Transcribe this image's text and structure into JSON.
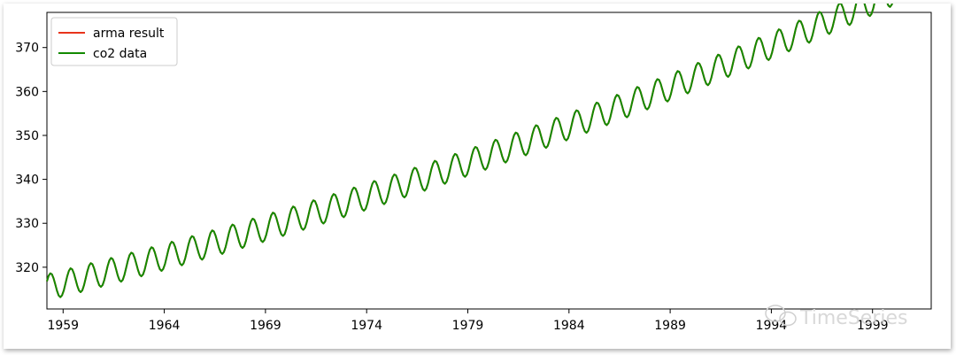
{
  "chart_data": {
    "type": "line",
    "title": "",
    "xlabel": "",
    "ylabel": "",
    "xlim": [
      1958.2,
      2001.9
    ],
    "ylim": [
      310.5,
      378.0
    ],
    "x_ticks": [
      1959,
      1964,
      1969,
      1974,
      1979,
      1984,
      1989,
      1994,
      1999
    ],
    "x_tick_labels": [
      "1959",
      "1964",
      "1969",
      "1974",
      "1979",
      "1984",
      "1989",
      "1994",
      "1999"
    ],
    "y_ticks": [
      320,
      330,
      340,
      350,
      360,
      370
    ],
    "y_tick_labels": [
      "320",
      "330",
      "340",
      "350",
      "360",
      "370"
    ],
    "grid": false,
    "legend_position": "upper-left",
    "series": [
      {
        "name": "arma result",
        "color": "#e8341c",
        "x_start": 1958.2,
        "x_end": 2001.917,
        "trend": {
          "base": 315.2,
          "slope": 1.12,
          "curvature": 0.0115,
          "seasonal_amplitude": 3.0,
          "peak_month": 4.5
        }
      },
      {
        "name": "co2 data",
        "color": "#138a00",
        "x_start": 1958.2,
        "x_end": 2001.5,
        "trend": {
          "base": 315.2,
          "slope": 1.12,
          "curvature": 0.0115,
          "seasonal_amplitude": 3.0,
          "peak_month": 4.5
        }
      }
    ]
  },
  "watermark": {
    "text": "TimeSeries",
    "icon": "wechat-icon"
  }
}
